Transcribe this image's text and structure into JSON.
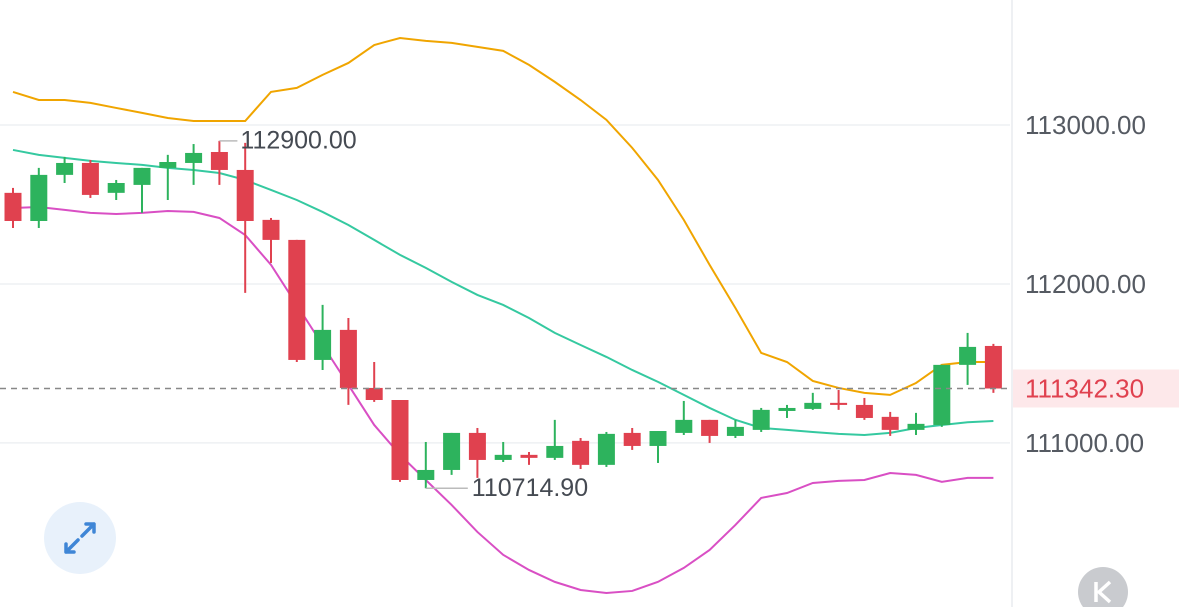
{
  "chart_data": {
    "type": "candlestick",
    "ylim": [
      109968,
      113786
    ],
    "yticks": [
      {
        "value": 113000,
        "label": "113000.00"
      },
      {
        "value": 112000,
        "label": "112000.00"
      },
      {
        "value": 111000,
        "label": "111000.00"
      }
    ],
    "grid": true,
    "up_color": "#2db35d",
    "down_color": "#e0414f",
    "open": [
      112573,
      112396,
      112686,
      112761,
      112573,
      112623,
      112730,
      112761,
      112830,
      112717,
      112403,
      112277,
      111522,
      111711,
      111346,
      111270,
      110767,
      110830,
      111063,
      110893,
      110925,
      110906,
      111013,
      110862,
      111063,
      110981,
      111063,
      111145,
      111044,
      111082,
      111201,
      111214,
      111252,
      111239,
      111164,
      111082,
      111113,
      111491,
      111610
    ],
    "high": [
      112604,
      112730,
      112799,
      112780,
      112654,
      112730,
      112812,
      112880,
      112900,
      112887,
      112415,
      112277,
      111868,
      111786,
      111509,
      111270,
      111006,
      111063,
      111094,
      111006,
      110943,
      111145,
      111031,
      111069,
      111094,
      111075,
      111264,
      111145,
      111145,
      111220,
      111239,
      111315,
      111333,
      111283,
      111195,
      111189,
      111491,
      111692,
      111623
    ],
    "low": [
      112352,
      112352,
      112635,
      112541,
      112528,
      112447,
      112528,
      112623,
      112623,
      111944,
      112132,
      111509,
      111459,
      111239,
      111258,
      110755,
      110714.9,
      110799,
      110780,
      110880,
      110862,
      110893,
      110836,
      110849,
      110956,
      110874,
      111050,
      111000,
      111031,
      111069,
      111157,
      111208,
      111208,
      111145,
      111044,
      111050,
      111101,
      111365,
      111315
    ],
    "close": [
      112396,
      112686,
      112761,
      112560,
      112635,
      112730,
      112767,
      112824,
      112717,
      112396,
      112277,
      111522,
      111711,
      111346,
      111270,
      110767,
      110830,
      111063,
      110893,
      110925,
      110906,
      110981,
      110862,
      111057,
      110981,
      111075,
      111145,
      111044,
      111101,
      111208,
      111220,
      111252,
      111239,
      111157,
      111082,
      111120,
      111491,
      111604,
      111342.3
    ],
    "bands": [
      {
        "color": "#f0a500",
        "values": [
          113208,
          113157,
          113157,
          113139,
          113107,
          113076,
          113044,
          113025,
          113025,
          113025,
          113208,
          113233,
          113315,
          113390,
          113503,
          113547,
          113529,
          113516,
          113491,
          113466,
          113378,
          113271,
          113157,
          113032,
          112856,
          112654,
          112403,
          112120,
          111849,
          111566,
          111509,
          111390,
          111346,
          111315,
          111302,
          111377,
          111491,
          111509,
          111509
        ]
      },
      {
        "color": "#35c9a0",
        "values": [
          112843,
          112812,
          112793,
          112774,
          112761,
          112749,
          112730,
          112717,
          112698,
          112654,
          112591,
          112528,
          112453,
          112371,
          112277,
          112183,
          112101,
          112013,
          111931,
          111868,
          111786,
          111692,
          111616,
          111541,
          111459,
          111384,
          111302,
          111220,
          111145,
          111094,
          111082,
          111069,
          111057,
          111050,
          111063,
          111094,
          111113,
          111130,
          111138
        ]
      },
      {
        "color": "#d94fc4",
        "values": [
          112478,
          112484,
          112466,
          112447,
          112440,
          112447,
          112459,
          112453,
          112415,
          112308,
          112120,
          111868,
          111616,
          111365,
          111113,
          110925,
          110767,
          110610,
          110440,
          110296,
          110201,
          110126,
          110075,
          110056,
          110069,
          110126,
          110214,
          110327,
          110484,
          110654,
          110685,
          110748,
          110761,
          110767,
          110811,
          110799,
          110755,
          110780,
          110780
        ]
      }
    ],
    "max_label": {
      "value": 112900,
      "label": "112900.00"
    },
    "min_label": {
      "value": 110714.9,
      "label": "110714.90"
    },
    "current_price": {
      "value": 111342.3,
      "label": "111342.30"
    }
  }
}
